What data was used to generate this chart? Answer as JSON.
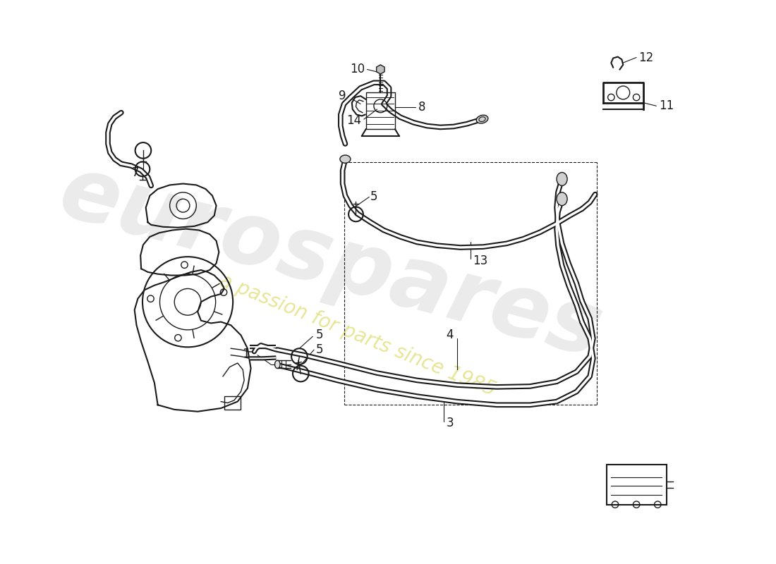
{
  "bg_color": "#ffffff",
  "line_color": "#1a1a1a",
  "watermark_text1": "eurospares",
  "watermark_text2": "a passion for parts since 1985",
  "hose_lw": 5.5,
  "thin_lw": 1.0,
  "main_lw": 1.5
}
